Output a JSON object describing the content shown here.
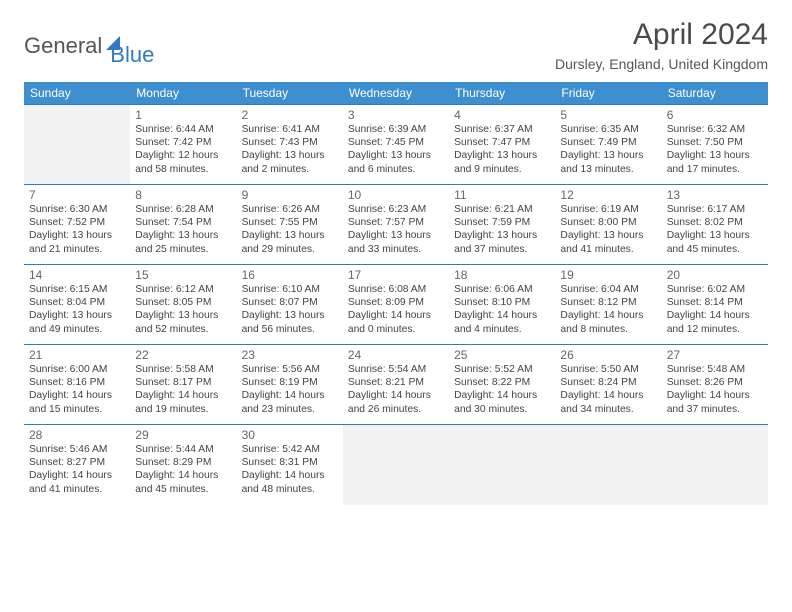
{
  "logo": {
    "part1": "General",
    "part2": "Blue"
  },
  "title": "April 2024",
  "location": "Dursley, England, United Kingdom",
  "colors": {
    "header_bg": "#3d8fcf",
    "border": "#2e7cc0",
    "blank_bg": "#f2f2f2",
    "text": "#444444"
  },
  "day_headers": [
    "Sunday",
    "Monday",
    "Tuesday",
    "Wednesday",
    "Thursday",
    "Friday",
    "Saturday"
  ],
  "weeks": [
    [
      {
        "blank": true
      },
      {
        "n": "1",
        "sr": "Sunrise: 6:44 AM",
        "ss": "Sunset: 7:42 PM",
        "d1": "Daylight: 12 hours",
        "d2": "and 58 minutes."
      },
      {
        "n": "2",
        "sr": "Sunrise: 6:41 AM",
        "ss": "Sunset: 7:43 PM",
        "d1": "Daylight: 13 hours",
        "d2": "and 2 minutes."
      },
      {
        "n": "3",
        "sr": "Sunrise: 6:39 AM",
        "ss": "Sunset: 7:45 PM",
        "d1": "Daylight: 13 hours",
        "d2": "and 6 minutes."
      },
      {
        "n": "4",
        "sr": "Sunrise: 6:37 AM",
        "ss": "Sunset: 7:47 PM",
        "d1": "Daylight: 13 hours",
        "d2": "and 9 minutes."
      },
      {
        "n": "5",
        "sr": "Sunrise: 6:35 AM",
        "ss": "Sunset: 7:49 PM",
        "d1": "Daylight: 13 hours",
        "d2": "and 13 minutes."
      },
      {
        "n": "6",
        "sr": "Sunrise: 6:32 AM",
        "ss": "Sunset: 7:50 PM",
        "d1": "Daylight: 13 hours",
        "d2": "and 17 minutes."
      }
    ],
    [
      {
        "n": "7",
        "sr": "Sunrise: 6:30 AM",
        "ss": "Sunset: 7:52 PM",
        "d1": "Daylight: 13 hours",
        "d2": "and 21 minutes."
      },
      {
        "n": "8",
        "sr": "Sunrise: 6:28 AM",
        "ss": "Sunset: 7:54 PM",
        "d1": "Daylight: 13 hours",
        "d2": "and 25 minutes."
      },
      {
        "n": "9",
        "sr": "Sunrise: 6:26 AM",
        "ss": "Sunset: 7:55 PM",
        "d1": "Daylight: 13 hours",
        "d2": "and 29 minutes."
      },
      {
        "n": "10",
        "sr": "Sunrise: 6:23 AM",
        "ss": "Sunset: 7:57 PM",
        "d1": "Daylight: 13 hours",
        "d2": "and 33 minutes."
      },
      {
        "n": "11",
        "sr": "Sunrise: 6:21 AM",
        "ss": "Sunset: 7:59 PM",
        "d1": "Daylight: 13 hours",
        "d2": "and 37 minutes."
      },
      {
        "n": "12",
        "sr": "Sunrise: 6:19 AM",
        "ss": "Sunset: 8:00 PM",
        "d1": "Daylight: 13 hours",
        "d2": "and 41 minutes."
      },
      {
        "n": "13",
        "sr": "Sunrise: 6:17 AM",
        "ss": "Sunset: 8:02 PM",
        "d1": "Daylight: 13 hours",
        "d2": "and 45 minutes."
      }
    ],
    [
      {
        "n": "14",
        "sr": "Sunrise: 6:15 AM",
        "ss": "Sunset: 8:04 PM",
        "d1": "Daylight: 13 hours",
        "d2": "and 49 minutes."
      },
      {
        "n": "15",
        "sr": "Sunrise: 6:12 AM",
        "ss": "Sunset: 8:05 PM",
        "d1": "Daylight: 13 hours",
        "d2": "and 52 minutes."
      },
      {
        "n": "16",
        "sr": "Sunrise: 6:10 AM",
        "ss": "Sunset: 8:07 PM",
        "d1": "Daylight: 13 hours",
        "d2": "and 56 minutes."
      },
      {
        "n": "17",
        "sr": "Sunrise: 6:08 AM",
        "ss": "Sunset: 8:09 PM",
        "d1": "Daylight: 14 hours",
        "d2": "and 0 minutes."
      },
      {
        "n": "18",
        "sr": "Sunrise: 6:06 AM",
        "ss": "Sunset: 8:10 PM",
        "d1": "Daylight: 14 hours",
        "d2": "and 4 minutes."
      },
      {
        "n": "19",
        "sr": "Sunrise: 6:04 AM",
        "ss": "Sunset: 8:12 PM",
        "d1": "Daylight: 14 hours",
        "d2": "and 8 minutes."
      },
      {
        "n": "20",
        "sr": "Sunrise: 6:02 AM",
        "ss": "Sunset: 8:14 PM",
        "d1": "Daylight: 14 hours",
        "d2": "and 12 minutes."
      }
    ],
    [
      {
        "n": "21",
        "sr": "Sunrise: 6:00 AM",
        "ss": "Sunset: 8:16 PM",
        "d1": "Daylight: 14 hours",
        "d2": "and 15 minutes."
      },
      {
        "n": "22",
        "sr": "Sunrise: 5:58 AM",
        "ss": "Sunset: 8:17 PM",
        "d1": "Daylight: 14 hours",
        "d2": "and 19 minutes."
      },
      {
        "n": "23",
        "sr": "Sunrise: 5:56 AM",
        "ss": "Sunset: 8:19 PM",
        "d1": "Daylight: 14 hours",
        "d2": "and 23 minutes."
      },
      {
        "n": "24",
        "sr": "Sunrise: 5:54 AM",
        "ss": "Sunset: 8:21 PM",
        "d1": "Daylight: 14 hours",
        "d2": "and 26 minutes."
      },
      {
        "n": "25",
        "sr": "Sunrise: 5:52 AM",
        "ss": "Sunset: 8:22 PM",
        "d1": "Daylight: 14 hours",
        "d2": "and 30 minutes."
      },
      {
        "n": "26",
        "sr": "Sunrise: 5:50 AM",
        "ss": "Sunset: 8:24 PM",
        "d1": "Daylight: 14 hours",
        "d2": "and 34 minutes."
      },
      {
        "n": "27",
        "sr": "Sunrise: 5:48 AM",
        "ss": "Sunset: 8:26 PM",
        "d1": "Daylight: 14 hours",
        "d2": "and 37 minutes."
      }
    ],
    [
      {
        "n": "28",
        "sr": "Sunrise: 5:46 AM",
        "ss": "Sunset: 8:27 PM",
        "d1": "Daylight: 14 hours",
        "d2": "and 41 minutes."
      },
      {
        "n": "29",
        "sr": "Sunrise: 5:44 AM",
        "ss": "Sunset: 8:29 PM",
        "d1": "Daylight: 14 hours",
        "d2": "and 45 minutes."
      },
      {
        "n": "30",
        "sr": "Sunrise: 5:42 AM",
        "ss": "Sunset: 8:31 PM",
        "d1": "Daylight: 14 hours",
        "d2": "and 48 minutes."
      },
      {
        "blank": true
      },
      {
        "blank": true
      },
      {
        "blank": true
      },
      {
        "blank": true
      }
    ]
  ]
}
